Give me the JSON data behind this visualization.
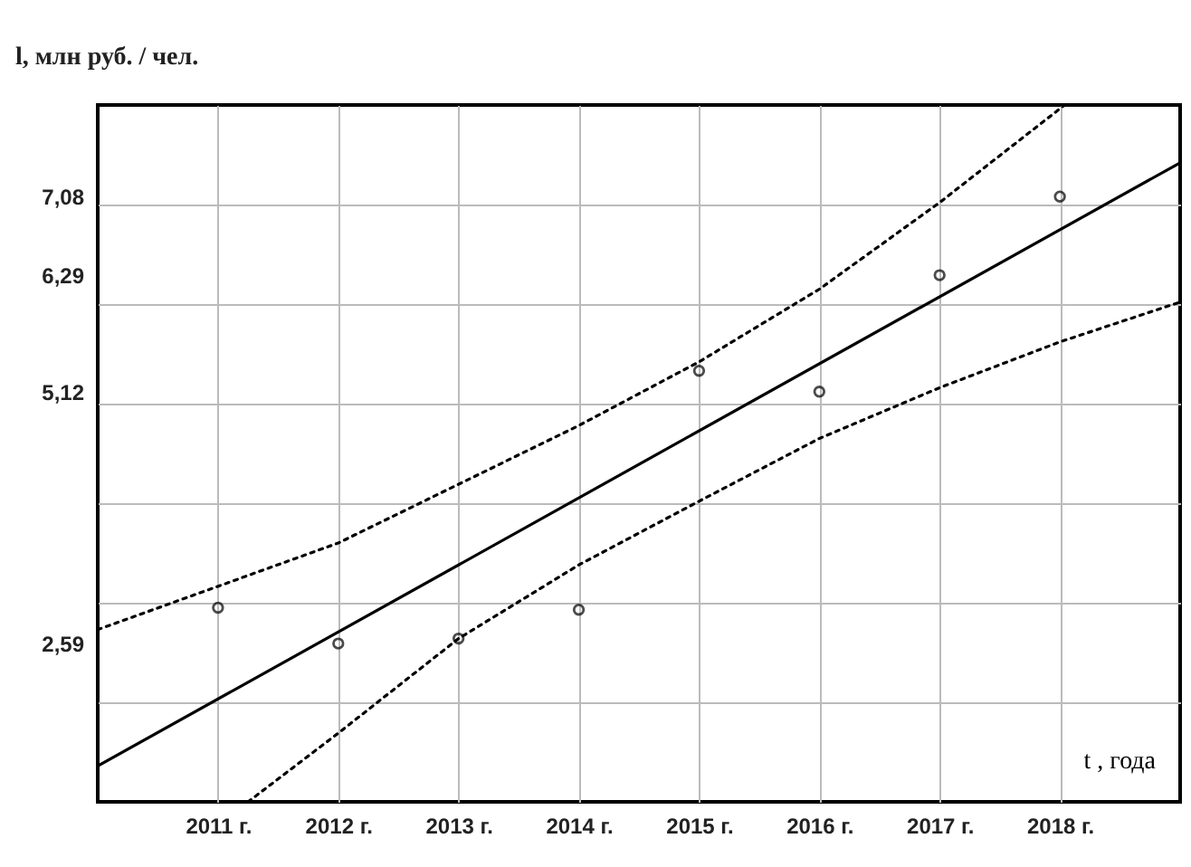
{
  "chart_data": {
    "type": "scatter",
    "ylabel": "l, млн руб. / чел.",
    "xlabel": "t , года",
    "xlim": [
      2010,
      2019
    ],
    "xticks": [
      {
        "value": 2011,
        "label": "2011 г."
      },
      {
        "value": 2012,
        "label": "2012 г."
      },
      {
        "value": 2013,
        "label": "2013 г."
      },
      {
        "value": 2014,
        "label": "2014 г."
      },
      {
        "value": 2015,
        "label": "2015 г."
      },
      {
        "value": 2016,
        "label": "2016 г."
      },
      {
        "value": 2017,
        "label": "2017 г."
      },
      {
        "value": 2018,
        "label": "2018 г."
      }
    ],
    "ylim": [
      1,
      8
    ],
    "yticks": [
      {
        "value": 2,
        "label": null
      },
      {
        "value": 2.59,
        "label": "2,59"
      },
      {
        "value": 3,
        "label": null
      },
      {
        "value": 4,
        "label": null
      },
      {
        "value": 5,
        "label": null
      },
      {
        "value": 5.12,
        "label": "5,12"
      },
      {
        "value": 6,
        "label": null
      },
      {
        "value": 6.29,
        "label": "6,29"
      },
      {
        "value": 7,
        "label": null
      },
      {
        "value": 7.08,
        "label": "7,08"
      }
    ],
    "grid": true,
    "series": [
      {
        "type": "line",
        "color": "#000000",
        "line_style": "dotted",
        "x": [
          2010,
          2012,
          2014,
          2015,
          2016,
          2017,
          2018.04
        ],
        "values": [
          2.73,
          3.6,
          4.78,
          5.42,
          6.15,
          7.02,
          8.0
        ]
      },
      {
        "type": "line",
        "color": "#000000",
        "line_style": "dotted",
        "x": [
          2011.25,
          2012,
          2013,
          2014,
          2015,
          2016,
          2017,
          2018,
          2019
        ],
        "values": [
          1.0,
          1.69,
          2.64,
          3.38,
          4.02,
          4.65,
          5.16,
          5.62,
          6.02
        ]
      },
      {
        "type": "line",
        "color": "#000000",
        "line_style": "solid",
        "x": [
          2010,
          2019
        ],
        "values": [
          1.36,
          7.42
        ]
      },
      {
        "color": "#000000",
        "marker": "circle",
        "x": [
          2011,
          2012,
          2013,
          2014,
          2015,
          2016,
          2017,
          2018
        ],
        "values": [
          2.95,
          2.59,
          2.64,
          2.93,
          5.33,
          5.12,
          6.29,
          7.08
        ]
      }
    ]
  }
}
